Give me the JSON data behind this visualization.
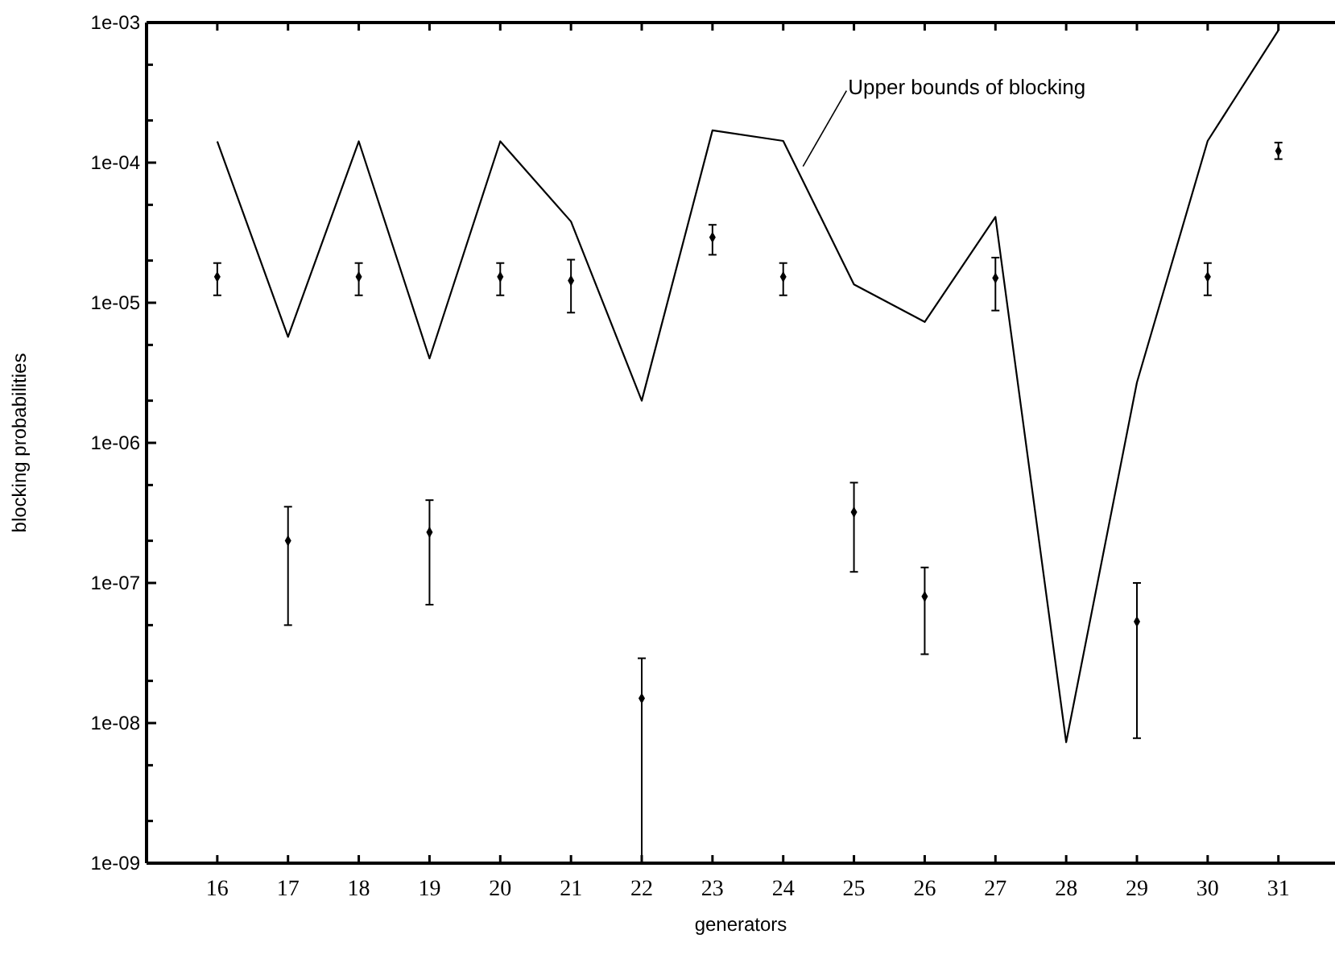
{
  "chart_data": {
    "type": "scatter",
    "xlabel": "generators",
    "ylabel": "blocking probabilities",
    "log": "y",
    "grid": false,
    "x": [
      16,
      17,
      18,
      19,
      20,
      21,
      22,
      23,
      24,
      25,
      26,
      27,
      28,
      29,
      30,
      31
    ],
    "series": [
      {
        "type": "line",
        "color": "#000000",
        "marker": "none",
        "line_style": "solid",
        "values": [
          0.000142,
          5.7e-06,
          0.000142,
          4e-06,
          0.000142,
          3.8e-05,
          2e-06,
          0.00017,
          0.000143,
          1.35e-05,
          7.3e-06,
          4.1e-05,
          7.3e-09,
          2.7e-06,
          0.000143,
          0.00088
        ]
      },
      {
        "color": "#000000",
        "marker": "diamond",
        "values": [
          1.53e-05,
          2e-07,
          1.53e-05,
          2.3e-07,
          1.53e-05,
          1.44e-05,
          1.5e-08,
          2.93e-05,
          1.53e-05,
          3.2e-07,
          8e-08,
          1.5e-05,
          null,
          5.3e-08,
          1.53e-05,
          0.000121
        ],
        "errors": [
          [
            1.13e-05,
            1.92e-05
          ],
          [
            5e-08,
            3.5e-07
          ],
          [
            1.13e-05,
            1.92e-05
          ],
          [
            7e-08,
            3.9e-07
          ],
          [
            1.13e-05,
            1.92e-05
          ],
          [
            8.5e-06,
            2.03e-05
          ],
          [
            1e-09,
            2.9e-08
          ],
          [
            2.2e-05,
            3.6e-05
          ],
          [
            1.13e-05,
            1.92e-05
          ],
          [
            1.2e-07,
            5.2e-07
          ],
          [
            3.1e-08,
            1.29e-07
          ],
          [
            8.8e-06,
            2.1e-05
          ],
          null,
          [
            7.8e-09,
            1e-07
          ],
          [
            1.13e-05,
            1.92e-05
          ],
          [
            0.000106,
            0.000139
          ]
        ]
      }
    ],
    "xlim": [
      15,
      31.8
    ],
    "xticks": [
      16,
      17,
      18,
      19,
      20,
      21,
      22,
      23,
      24,
      25,
      26,
      27,
      28,
      29,
      30,
      31
    ],
    "ylim": [
      1e-09,
      0.001
    ],
    "yticks": [
      {
        "value": 1e-09,
        "label": "1e-09"
      },
      {
        "value": 2e-09,
        "label": null
      },
      {
        "value": 5e-09,
        "label": null
      },
      {
        "value": 1e-08,
        "label": "1e-08"
      },
      {
        "value": 2e-08,
        "label": null
      },
      {
        "value": 5e-08,
        "label": null
      },
      {
        "value": 1e-07,
        "label": "1e-07"
      },
      {
        "value": 2e-07,
        "label": null
      },
      {
        "value": 5e-07,
        "label": null
      },
      {
        "value": 1e-06,
        "label": "1e-06"
      },
      {
        "value": 2e-06,
        "label": null
      },
      {
        "value": 5e-06,
        "label": null
      },
      {
        "value": 1e-05,
        "label": "1e-05"
      },
      {
        "value": 2e-05,
        "label": null
      },
      {
        "value": 5e-05,
        "label": null
      },
      {
        "value": 0.0001,
        "label": "1e-04"
      },
      {
        "value": 0.0002,
        "label": null
      },
      {
        "value": 0.0005,
        "label": null
      },
      {
        "value": 0.001,
        "label": "1e-03"
      }
    ],
    "annotations": [
      {
        "text": "Upper bounds of blocking",
        "x": 24.28,
        "y": 9.4e-05
      }
    ]
  }
}
